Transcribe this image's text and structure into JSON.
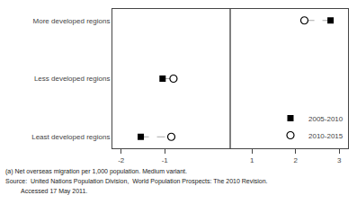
{
  "chart_data": {
    "type": "dumbbell",
    "orientation": "horizontal",
    "categories": [
      "More developed regions",
      "Less developed regions",
      "Least developed regions"
    ],
    "series": [
      {
        "name": "2005-2010",
        "color": "black",
        "marker": "square",
        "values": [
          2.8,
          -1.05,
          -1.55
        ]
      },
      {
        "name": "2010-2015",
        "color": "black",
        "marker": "open circle",
        "values": [
          2.2,
          -0.8,
          -0.85
        ]
      }
    ],
    "connector": {
      "color": "#aaaaaa",
      "line_style": "dashed"
    },
    "vline": 0.5,
    "xlim": [
      -2.2,
      3.2
    ],
    "xticks": [
      -2,
      -1,
      1,
      2,
      3
    ],
    "grid": false,
    "legend": "lower right",
    "annotations": [
      "(a) Net overseas migration per 1,000 population. Medium variant.",
      "Source:  United Nations Population Division,  World Population Prospects: The 2010 Revision.",
      "         Accessed 17 May 2011."
    ]
  }
}
